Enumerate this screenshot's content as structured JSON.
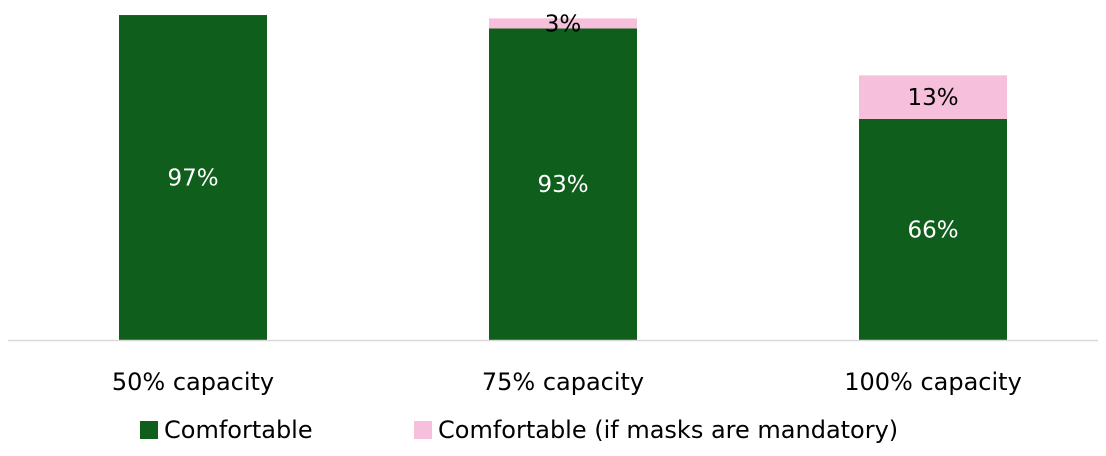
{
  "chart_data": {
    "type": "bar",
    "stacked": true,
    "title": "",
    "xlabel": "",
    "ylabel": "",
    "ylim": [
      0,
      100
    ],
    "grid": false,
    "legend_position": "bottom",
    "categories": [
      "50% capacity",
      "75% capacity",
      "100% capacity"
    ],
    "series": [
      {
        "name": "Comfortable",
        "color": "#0f5e1c",
        "label_color": "#ffffff",
        "values": [
          97,
          93,
          66
        ],
        "labels": [
          "97%",
          "93%",
          "66%"
        ]
      },
      {
        "name": "Comfortable (if masks are mandatory)",
        "color": "#f6bfdc",
        "label_color": "#000000",
        "values": [
          0,
          3,
          13
        ],
        "labels": [
          "",
          "3%",
          "13%"
        ]
      }
    ]
  }
}
